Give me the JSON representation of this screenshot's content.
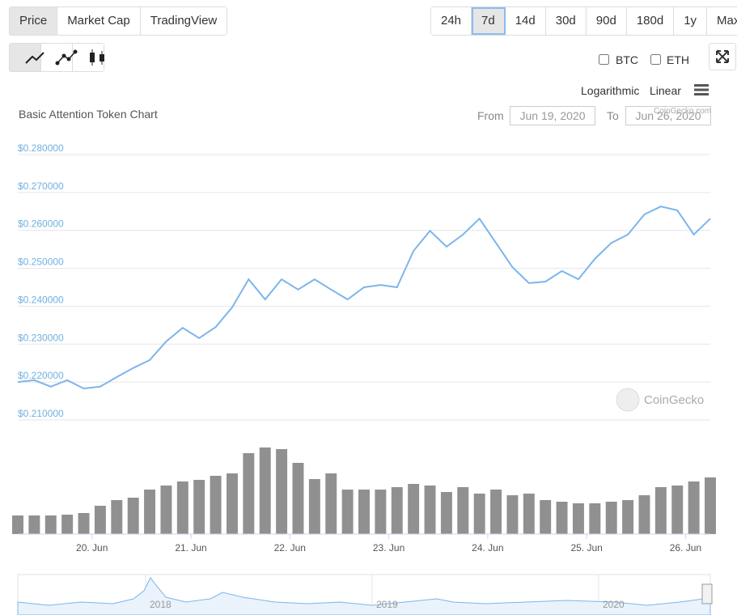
{
  "tabs": [
    "Price",
    "Market Cap",
    "TradingView"
  ],
  "ranges": [
    "24h",
    "7d",
    "14d",
    "30d",
    "90d",
    "180d",
    "1y",
    "Max"
  ],
  "active_range": "7d",
  "compare": [
    "BTC",
    "ETH"
  ],
  "scales": [
    "Logarithmic",
    "Linear"
  ],
  "from_label": "From",
  "from_date": "Jun 19, 2020",
  "to_label": "To",
  "to_date": "Jun 26, 2020",
  "credit": "CoinGecko.com",
  "watermark": "CoinGecko",
  "navigator_labels": [
    "2018",
    "2019",
    "2020"
  ],
  "chart_data": {
    "type": "line",
    "title": "Basic Attention Token Chart",
    "color": "#7cb5ec",
    "values": [
      0.22,
      0.2205,
      0.2188,
      0.2205,
      0.2183,
      0.2188,
      0.2213,
      0.2237,
      0.2258,
      0.2307,
      0.2343,
      0.2316,
      0.2345,
      0.2397,
      0.2471,
      0.2418,
      0.2471,
      0.2444,
      0.2471,
      0.2444,
      0.2418,
      0.245,
      0.2456,
      0.245,
      0.2546,
      0.2599,
      0.2557,
      0.2589,
      0.2631,
      0.2567,
      0.2503,
      0.2461,
      0.2465,
      0.2493,
      0.2471,
      0.2525,
      0.2567,
      0.2589,
      0.2642,
      0.2663,
      0.2653,
      0.2589,
      0.2631
    ],
    "volume_values": [
      23,
      23,
      23,
      24,
      26,
      35,
      42,
      45,
      55,
      60,
      65,
      67,
      72,
      75,
      100,
      107,
      105,
      88,
      68,
      75,
      55,
      55,
      55,
      58,
      62,
      60,
      52,
      58,
      50,
      55,
      48,
      50,
      42,
      40,
      38,
      38,
      40,
      42,
      48,
      58,
      60,
      65,
      70
    ],
    "volume_color": "#909090",
    "xlim": [
      0,
      42
    ],
    "xticks": [
      {
        "value": 4.5,
        "label": "20. Jun"
      },
      {
        "value": 10.5,
        "label": "21. Jun"
      },
      {
        "value": 16.5,
        "label": "22. Jun"
      },
      {
        "value": 22.5,
        "label": "23. Jun"
      },
      {
        "value": 28.5,
        "label": "24. Jun"
      },
      {
        "value": 34.5,
        "label": "25. Jun"
      },
      {
        "value": 40.5,
        "label": "26. Jun"
      }
    ],
    "ylim": [
      0.21,
      0.28
    ],
    "yticks": [
      {
        "value": 0.28,
        "label": "$0.280000"
      },
      {
        "value": 0.27,
        "label": "$0.270000"
      },
      {
        "value": 0.26,
        "label": "$0.260000"
      },
      {
        "value": 0.25,
        "label": "$0.250000"
      },
      {
        "value": 0.24,
        "label": "$0.240000"
      },
      {
        "value": 0.23,
        "label": "$0.230000"
      },
      {
        "value": 0.22,
        "label": "$0.220000"
      },
      {
        "value": 0.21,
        "label": "$0.210000"
      }
    ],
    "y2lim": [
      0,
      120
    ],
    "grid": true
  }
}
